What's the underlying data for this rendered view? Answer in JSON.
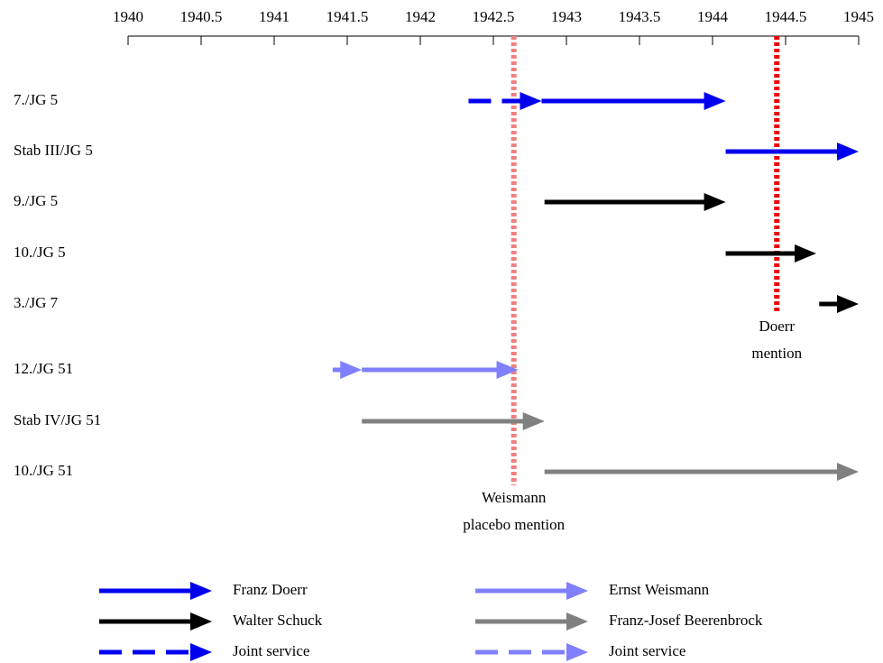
{
  "chart_data": {
    "type": "timeline",
    "xlim": [
      1940,
      1945
    ],
    "xticks": [
      1940,
      1940.5,
      1941,
      1941.5,
      1942,
      1942.5,
      1943,
      1943.5,
      1944,
      1944.5,
      1945
    ],
    "categories": [
      "7./JG 5",
      "Stab III/JG 5",
      "9./JG 5",
      "10./JG 5",
      "3./JG 7",
      "12./JG 51",
      "Stab IV/JG 51",
      "10./JG 51"
    ],
    "series": [
      {
        "name": "Franz Doerr",
        "color": "#0000ee",
        "dashed": false,
        "values": [
          [
            1942.83,
            1944.09
          ],
          [
            1944.09,
            1945
          ],
          null,
          null,
          null,
          null,
          null,
          null
        ]
      },
      {
        "name": "Walter Schuck",
        "color": "#000000",
        "dashed": false,
        "values": [
          null,
          null,
          [
            1942.85,
            1944.09
          ],
          [
            1944.09,
            1944.71
          ],
          [
            1944.73,
            1945
          ],
          null,
          null,
          null
        ]
      },
      {
        "name": "Joint service",
        "color": "#0000ee",
        "dashed": true,
        "values": [
          [
            1942.33,
            1942.83
          ],
          null,
          null,
          null,
          null,
          null,
          null,
          null
        ]
      },
      {
        "name": "Ernst Weismann",
        "color": "#8080ff",
        "dashed": false,
        "values": [
          null,
          null,
          null,
          null,
          null,
          [
            1941.6,
            1942.67
          ],
          null,
          null
        ]
      },
      {
        "name": "Franz-Josef Beerenbrock",
        "color": "#808080",
        "dashed": false,
        "values": [
          null,
          null,
          null,
          null,
          null,
          null,
          [
            1941.6,
            1942.85
          ],
          [
            1942.85,
            1945
          ]
        ]
      },
      {
        "name": "Joint service",
        "color": "#8080ff",
        "dashed": true,
        "values": [
          null,
          null,
          null,
          null,
          null,
          [
            1941.4,
            1941.6
          ],
          null,
          null
        ]
      }
    ],
    "annotations": [
      {
        "text": [
          "Weismann",
          "placebo mention"
        ],
        "x": 1942.64,
        "color": "#f08080"
      },
      {
        "text": [
          "Doerr",
          "mention"
        ],
        "x": 1944.44,
        "color": "#ee0000"
      }
    ]
  }
}
